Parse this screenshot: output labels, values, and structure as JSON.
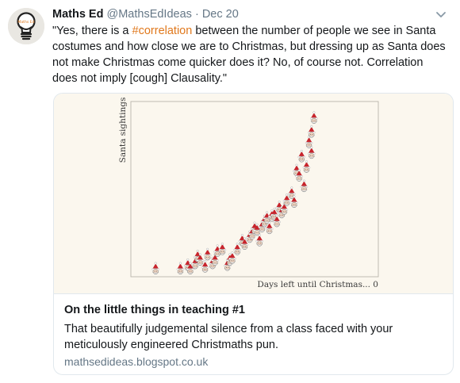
{
  "tweet": {
    "author_name": "Maths Ed",
    "handle": "@MathsEdIdeas",
    "separator": "·",
    "date": "Dec 20",
    "text_before": "\"Yes, there is a ",
    "hashtag": "#correlation",
    "text_after": " between the number of people we see in Santa costumes and how close we are to Christmas, but dressing up as Santa does not make Christmas come quicker does it? No, of course not. Correlation does not imply [cough] Clausality.\"",
    "avatar_text": "Maths Ed"
  },
  "card": {
    "title": "On the little things in teaching #1",
    "description": "That beautifully judgemental silence from a class faced with your meticulously engineered Christmaths pun.",
    "url": "mathsedideas.blogspot.co.uk"
  },
  "colors": {
    "hashtag": "#e0781c",
    "secondary_text": "#657786",
    "santa_red": "#c8242c",
    "chart_bg": "#fbf7ee"
  },
  "chart_data": {
    "type": "scatter",
    "title": "",
    "xlabel": "Days left until Christmas... 0",
    "ylabel": "Santa sightings",
    "marker": "santa-face",
    "grid": false,
    "xlim": [
      0,
      100
    ],
    "ylim": [
      0,
      100
    ],
    "points": [
      {
        "x": 10,
        "y": 4
      },
      {
        "x": 20,
        "y": 4
      },
      {
        "x": 23,
        "y": 6
      },
      {
        "x": 24,
        "y": 4
      },
      {
        "x": 26,
        "y": 7
      },
      {
        "x": 27,
        "y": 11
      },
      {
        "x": 28,
        "y": 9
      },
      {
        "x": 30,
        "y": 5
      },
      {
        "x": 31,
        "y": 12
      },
      {
        "x": 33,
        "y": 7
      },
      {
        "x": 34,
        "y": 9
      },
      {
        "x": 35,
        "y": 14
      },
      {
        "x": 37,
        "y": 15
      },
      {
        "x": 39,
        "y": 6
      },
      {
        "x": 40,
        "y": 9
      },
      {
        "x": 41,
        "y": 10
      },
      {
        "x": 43,
        "y": 15
      },
      {
        "x": 45,
        "y": 20
      },
      {
        "x": 46,
        "y": 18
      },
      {
        "x": 48,
        "y": 22
      },
      {
        "x": 49,
        "y": 24
      },
      {
        "x": 50,
        "y": 27
      },
      {
        "x": 51,
        "y": 26
      },
      {
        "x": 52,
        "y": 20
      },
      {
        "x": 53,
        "y": 28
      },
      {
        "x": 54,
        "y": 31
      },
      {
        "x": 55,
        "y": 33
      },
      {
        "x": 56,
        "y": 27
      },
      {
        "x": 57,
        "y": 34
      },
      {
        "x": 58,
        "y": 35
      },
      {
        "x": 59,
        "y": 31
      },
      {
        "x": 60,
        "y": 39
      },
      {
        "x": 61,
        "y": 36
      },
      {
        "x": 62,
        "y": 38
      },
      {
        "x": 63,
        "y": 43
      },
      {
        "x": 65,
        "y": 47
      },
      {
        "x": 66,
        "y": 42
      },
      {
        "x": 67,
        "y": 60
      },
      {
        "x": 68,
        "y": 57
      },
      {
        "x": 69,
        "y": 68
      },
      {
        "x": 70,
        "y": 51
      },
      {
        "x": 71,
        "y": 62
      },
      {
        "x": 72,
        "y": 76
      },
      {
        "x": 73,
        "y": 70
      },
      {
        "x": 73,
        "y": 82
      },
      {
        "x": 74,
        "y": 90
      }
    ]
  }
}
